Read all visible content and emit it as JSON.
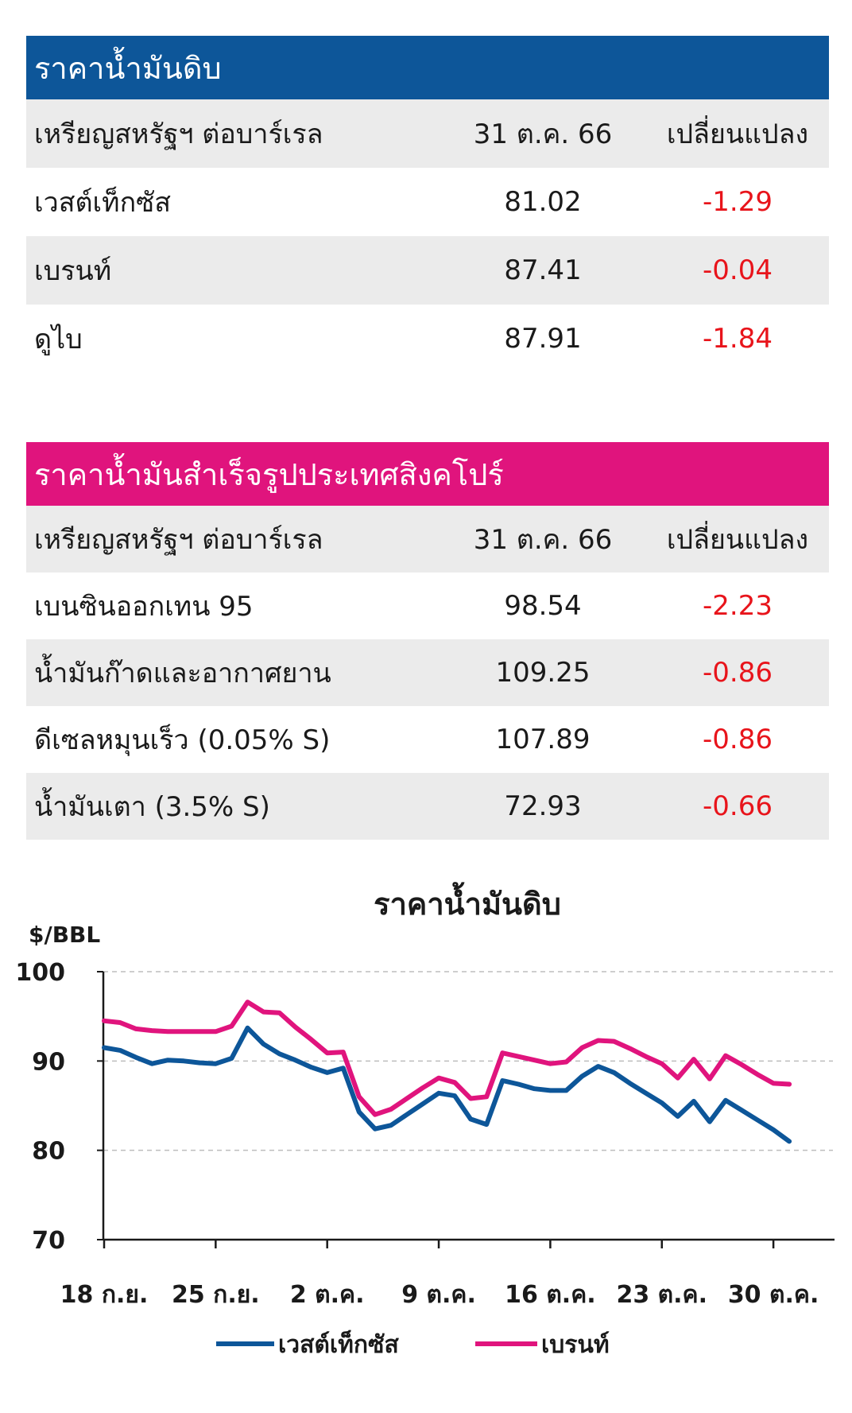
{
  "crude_table": {
    "title": "ราคาน้ำมันดิบ",
    "header": {
      "label": "เหรียญสหรัฐฯ ต่อบาร์เรล",
      "date": "31 ต.ค. 66",
      "change": "เปลี่ยนแปลง"
    },
    "rows": [
      {
        "name": "เวสต์เท็กซัส",
        "price": "81.02",
        "change": "-1.29"
      },
      {
        "name": "เบรนท์",
        "price": "87.41",
        "change": "-0.04"
      },
      {
        "name": "ดูไบ",
        "price": "87.91",
        "change": "-1.84"
      }
    ]
  },
  "singapore_table": {
    "title": "ราคาน้ำมันสำเร็จรูปประเทศสิงคโปร์",
    "header": {
      "label": "เหรียญสหรัฐฯ ต่อบาร์เรล",
      "date": "31 ต.ค. 66",
      "change": "เปลี่ยนแปลง"
    },
    "rows": [
      {
        "name": "เบนซินออกเทน 95",
        "price": "98.54",
        "change": "-2.23"
      },
      {
        "name": "น้ำมันก๊าดและอากาศยาน",
        "price": "109.25",
        "change": "-0.86"
      },
      {
        "name": "ดีเซลหมุนเร็ว (0.05% S)",
        "price": "107.89",
        "change": "-0.86"
      },
      {
        "name": "น้ำมันเตา (3.5% S)",
        "price": "72.93",
        "change": "-0.66"
      }
    ]
  },
  "colors": {
    "crude_header": "#0d5699",
    "singapore_header": "#e0147d",
    "negative": "#e8141b",
    "wti_line": "#0d5699",
    "brent_line": "#e0147d"
  },
  "chart_data": {
    "type": "line",
    "title": "ราคาน้ำมันดิบ",
    "ylabel": "$/BBL",
    "ylim": [
      70,
      100
    ],
    "yticks": [
      "70",
      "80",
      "90",
      "100"
    ],
    "xticks": [
      "18 ก.ย.",
      "25 ก.ย.",
      "2 ต.ค.",
      "9 ต.ค.",
      "16 ต.ค.",
      "23 ต.ค.",
      "30 ต.ค."
    ],
    "grid": "horizontal dashed",
    "legend": "bottom",
    "x_day_index": [
      0,
      1,
      2,
      3,
      4,
      5,
      6,
      7,
      8,
      9,
      10,
      11,
      12,
      13,
      14,
      15,
      16,
      17,
      18,
      19,
      20,
      21,
      22,
      23,
      24,
      25,
      26,
      27,
      28,
      29,
      30,
      31,
      32,
      33,
      34,
      35,
      36,
      37,
      38,
      39,
      40,
      41,
      42,
      43
    ],
    "series": [
      {
        "name": "เวสต์เท็กซัส",
        "values": [
          91.5,
          91.2,
          90.4,
          89.7,
          90.1,
          90.0,
          89.8,
          89.7,
          90.3,
          93.7,
          91.9,
          90.8,
          90.1,
          89.3,
          88.7,
          89.2,
          84.3,
          82.4,
          82.8,
          84.0,
          85.2,
          86.4,
          86.1,
          83.5,
          82.9,
          87.8,
          87.4,
          86.9,
          86.7,
          86.7,
          88.3,
          89.4,
          88.7,
          87.5,
          86.4,
          85.3,
          83.8,
          85.5,
          83.2,
          85.6,
          84.5,
          83.4,
          82.3,
          81.0
        ]
      },
      {
        "name": "เบรนท์",
        "values": [
          94.5,
          94.3,
          93.6,
          93.4,
          93.3,
          93.3,
          93.3,
          93.3,
          93.9,
          96.6,
          95.5,
          95.4,
          93.8,
          92.4,
          90.9,
          91.0,
          86.0,
          84.0,
          84.6,
          85.8,
          87.0,
          88.1,
          87.6,
          85.8,
          86.0,
          90.9,
          90.5,
          90.1,
          89.7,
          89.9,
          91.5,
          92.3,
          92.2,
          91.4,
          90.5,
          89.7,
          88.1,
          90.2,
          88.0,
          90.6,
          89.6,
          88.5,
          87.5,
          87.4
        ]
      }
    ]
  }
}
